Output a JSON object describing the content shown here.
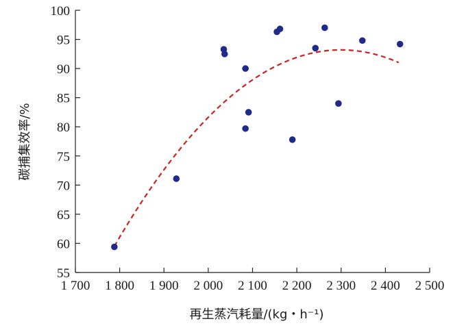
{
  "chart_data": {
    "type": "scatter",
    "xlabel": "再生蒸汽耗量/(kg・h⁻¹)",
    "ylabel": "碳捕集效率/%",
    "xlim": [
      1700,
      2500
    ],
    "ylim": [
      55,
      100
    ],
    "x_ticks": [
      1700,
      1800,
      1900,
      2000,
      2100,
      2200,
      2300,
      2400,
      2500
    ],
    "x_tick_labels": [
      "1 700",
      "1 800",
      "1 900",
      "2 000",
      "2 100",
      "2 200",
      "2 300",
      "2 400",
      "2 500"
    ],
    "y_ticks": [
      55,
      60,
      65,
      70,
      75,
      80,
      85,
      90,
      95,
      100
    ],
    "y_tick_labels": [
      "55",
      "60",
      "65",
      "70",
      "75",
      "80",
      "85",
      "90",
      "95",
      "100"
    ],
    "grid": false,
    "series": [
      {
        "kind": "points",
        "color": "#1f2a8a",
        "points": [
          {
            "x": 1788,
            "y": 59.4
          },
          {
            "x": 1928,
            "y": 71.1
          },
          {
            "x": 2035,
            "y": 93.3
          },
          {
            "x": 2037,
            "y": 92.5
          },
          {
            "x": 2084,
            "y": 90.0
          },
          {
            "x": 2084,
            "y": 79.7
          },
          {
            "x": 2091,
            "y": 82.5
          },
          {
            "x": 2155,
            "y": 96.3
          },
          {
            "x": 2162,
            "y": 96.8
          },
          {
            "x": 2190,
            "y": 77.8
          },
          {
            "x": 2242,
            "y": 93.5
          },
          {
            "x": 2263,
            "y": 97.0
          },
          {
            "x": 2294,
            "y": 84.0
          },
          {
            "x": 2348,
            "y": 94.8
          },
          {
            "x": 2433,
            "y": 94.2
          }
        ]
      },
      {
        "kind": "fit-curve",
        "style": "dashed",
        "color": "#cc2222",
        "x_range": [
          1788,
          2430
        ],
        "vertex": {
          "x": 2300,
          "y": 93.2
        },
        "start": {
          "x": 1788,
          "y": 59.5
        }
      }
    ]
  }
}
